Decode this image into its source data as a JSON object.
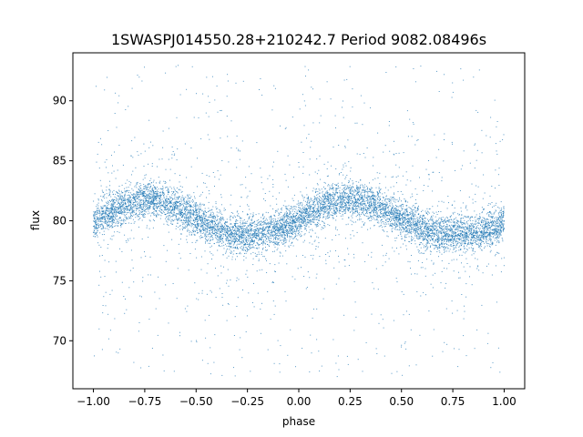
{
  "chart_data": {
    "type": "scatter",
    "title": "1SWASPJ014550.28+210242.7 Period 9082.08496s",
    "xlabel": "phase",
    "ylabel": "flux",
    "xlim": [
      -1.1,
      1.1
    ],
    "ylim": [
      66.0,
      94.0
    ],
    "xticks": [
      -1.0,
      -0.75,
      -0.5,
      -0.25,
      0.0,
      0.25,
      0.5,
      0.75,
      1.0
    ],
    "xtick_labels": [
      "−1.00",
      "−0.75",
      "−0.50",
      "−0.25",
      "0.00",
      "0.25",
      "0.50",
      "0.75",
      "1.00"
    ],
    "yticks": [
      70,
      75,
      80,
      85,
      90
    ],
    "ytick_labels": [
      "70",
      "75",
      "80",
      "85",
      "90"
    ],
    "grid": false,
    "marker_color": "#1f77b4",
    "series": [
      {
        "x": [
          -1.0,
          -0.95,
          -0.9,
          -0.85,
          -0.8,
          -0.75,
          -0.7,
          -0.65,
          -0.6,
          -0.55,
          -0.5,
          -0.45,
          -0.4,
          -0.35,
          -0.3,
          -0.25,
          -0.2,
          -0.15,
          -0.1,
          -0.05,
          0.0,
          0.05,
          0.1,
          0.15,
          0.2,
          0.25,
          0.3,
          0.35,
          0.4,
          0.45,
          0.5,
          0.55,
          0.6,
          0.65,
          0.7,
          0.75,
          0.8,
          0.85,
          0.9,
          0.95,
          1.0
        ],
        "y": [
          79.9,
          80.4,
          80.9,
          81.3,
          81.6,
          81.8,
          81.8,
          81.5,
          81.1,
          80.6,
          80.2,
          79.7,
          79.3,
          79.0,
          78.9,
          78.8,
          78.9,
          79.0,
          79.3,
          79.7,
          80.1,
          80.6,
          81.1,
          81.5,
          81.7,
          81.8,
          81.7,
          81.4,
          81.0,
          80.6,
          80.2,
          79.8,
          79.4,
          79.1,
          78.9,
          78.9,
          78.9,
          79.0,
          79.2,
          79.5,
          79.9
        ]
      }
    ]
  }
}
